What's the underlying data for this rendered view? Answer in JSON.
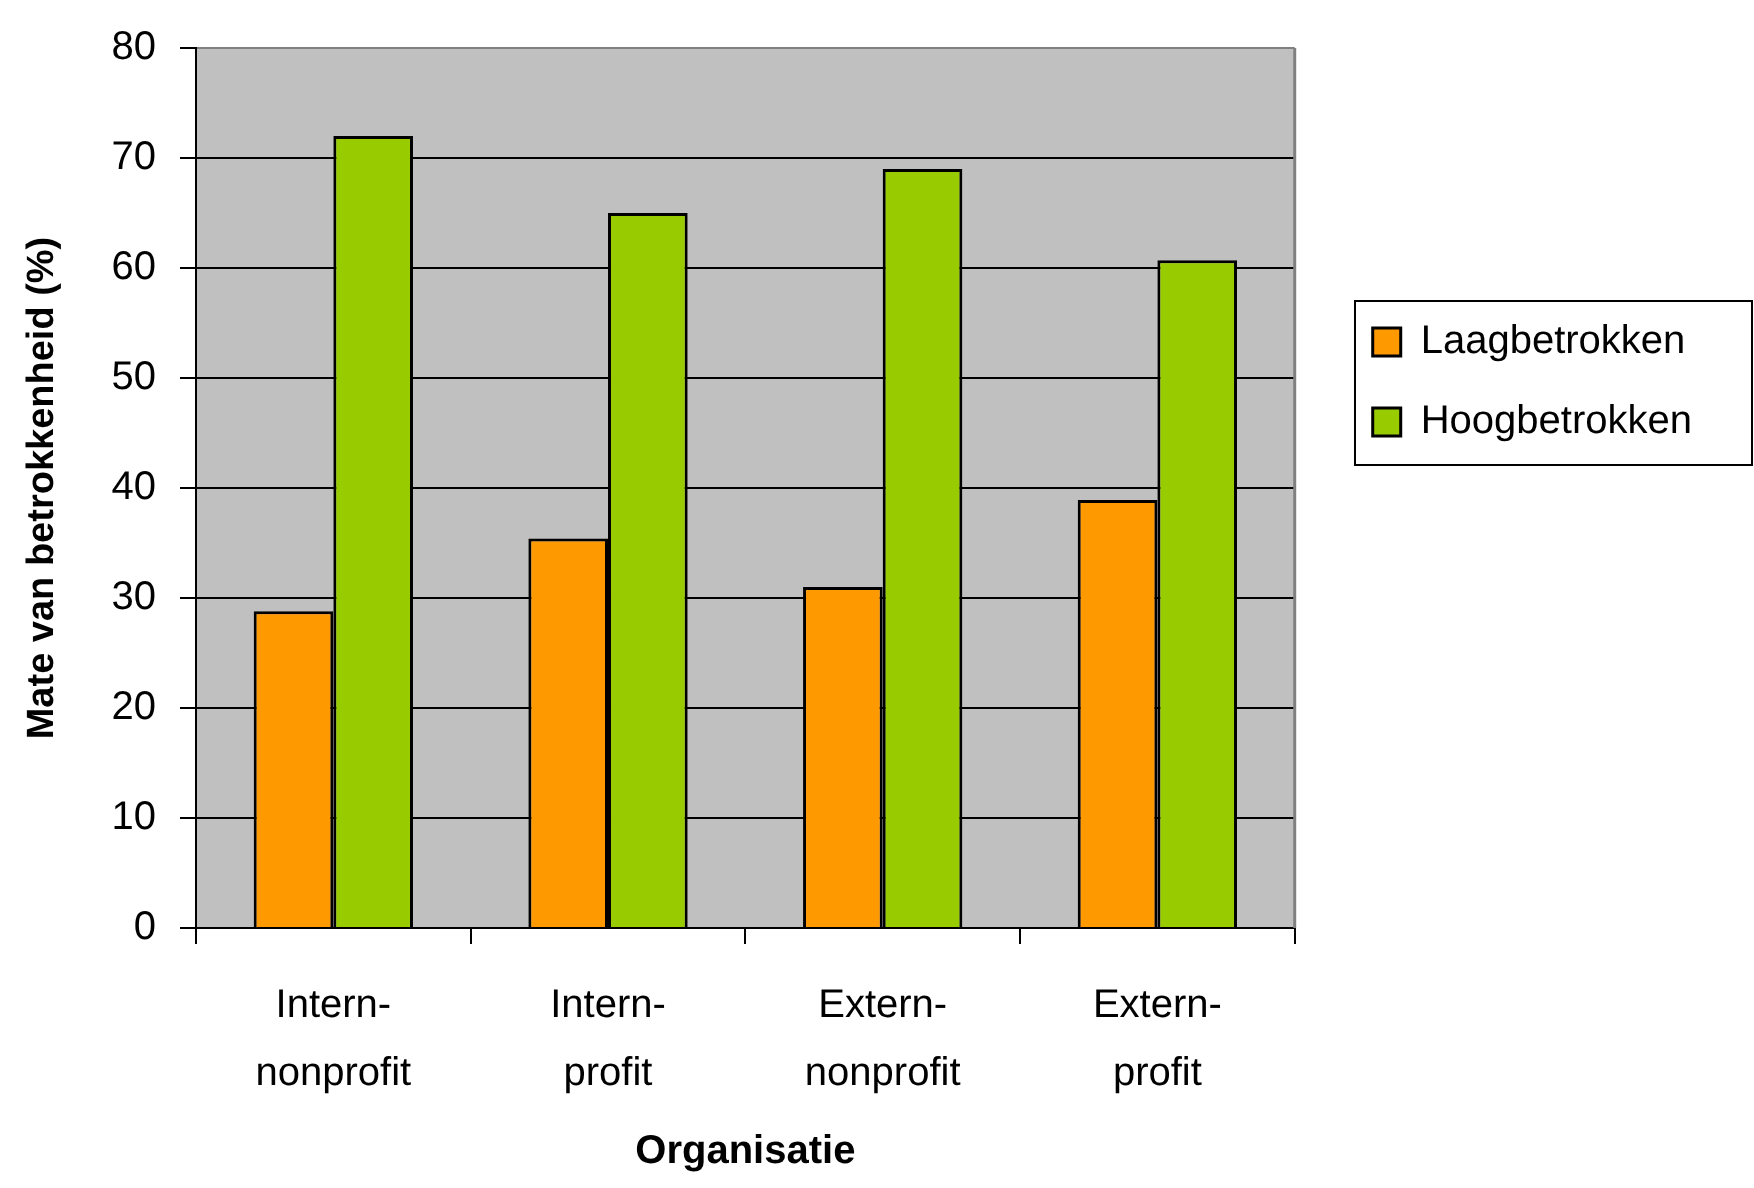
{
  "chart_data": {
    "type": "bar",
    "xlabel": "Organisatie",
    "ylabel": "Mate van betrokkenheid (%)",
    "categories": [
      "Intern-nonprofit",
      "Intern-profit",
      "Extern-nonprofit",
      "Extern-profit"
    ],
    "series": [
      {
        "name": "Laagbetrokken",
        "color": "#ff9900",
        "values": [
          28.8,
          35.4,
          31.0,
          38.9
        ]
      },
      {
        "name": "Hoogbetrokken",
        "color": "#99cc00",
        "values": [
          72.0,
          65.0,
          69.0,
          60.7
        ]
      }
    ],
    "ylim": [
      0,
      80
    ],
    "yticks": [
      0,
      10,
      20,
      30,
      40,
      50,
      60,
      70,
      80
    ],
    "grid": "y",
    "legend": "right"
  }
}
